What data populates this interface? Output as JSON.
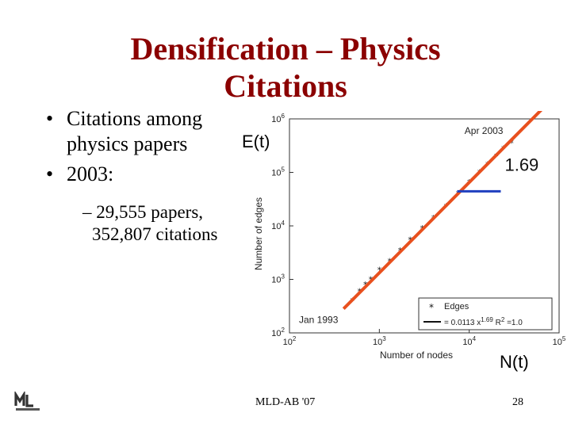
{
  "slide": {
    "title_line1": "Densification – Physics",
    "title_line2": "Citations",
    "bullets": [
      {
        "line1": "Citations among",
        "line2": "physics papers"
      },
      {
        "line1": "2003:"
      }
    ],
    "sub_bullet": {
      "line1": "– 29,555 papers,",
      "line2": "352,807 citations"
    },
    "label_et": "E(t)",
    "label_nt": "N(t)",
    "slope_label": "1.69",
    "footer_center": "MLD-AB '07",
    "page_number": "28",
    "accent_color": "#8b0000",
    "fit_line_color": "#e8501e",
    "slope_line_color": "#1f3fbf"
  },
  "chart_data": {
    "type": "scatter",
    "xscale": "log",
    "yscale": "log",
    "xlim": [
      100,
      100000
    ],
    "ylim": [
      100,
      1000000
    ],
    "xlabel": "Number of nodes",
    "ylabel": "Number of edges",
    "xticks": [
      "10^2",
      "10^3",
      "10^4",
      "10^5"
    ],
    "yticks": [
      "10^2",
      "10^3",
      "10^4",
      "10^5",
      "10^6"
    ],
    "annotations": [
      "Jan 1993",
      "Apr 2003"
    ],
    "legend": {
      "placement": "bottom-right",
      "entries": [
        {
          "label": "Edges",
          "marker": "*"
        },
        {
          "label": "= 0.0113 x^1.69 R^2=1.0",
          "marker": "line"
        }
      ]
    },
    "series": [
      {
        "name": "Edges",
        "x": [
          500,
          600,
          700,
          800,
          1000,
          1300,
          1700,
          2200,
          3000,
          4000,
          5500,
          7500,
          10000,
          13000,
          16000,
          20000,
          24000,
          29555
        ],
        "y": [
          400,
          600,
          800,
          1000,
          1500,
          2200,
          3500,
          5500,
          9000,
          14000,
          23000,
          40000,
          65000,
          100000,
          140000,
          200000,
          280000,
          352807
        ]
      }
    ],
    "fit": {
      "coefficient": 0.0113,
      "exponent": 1.69,
      "r2": 1.0
    }
  }
}
